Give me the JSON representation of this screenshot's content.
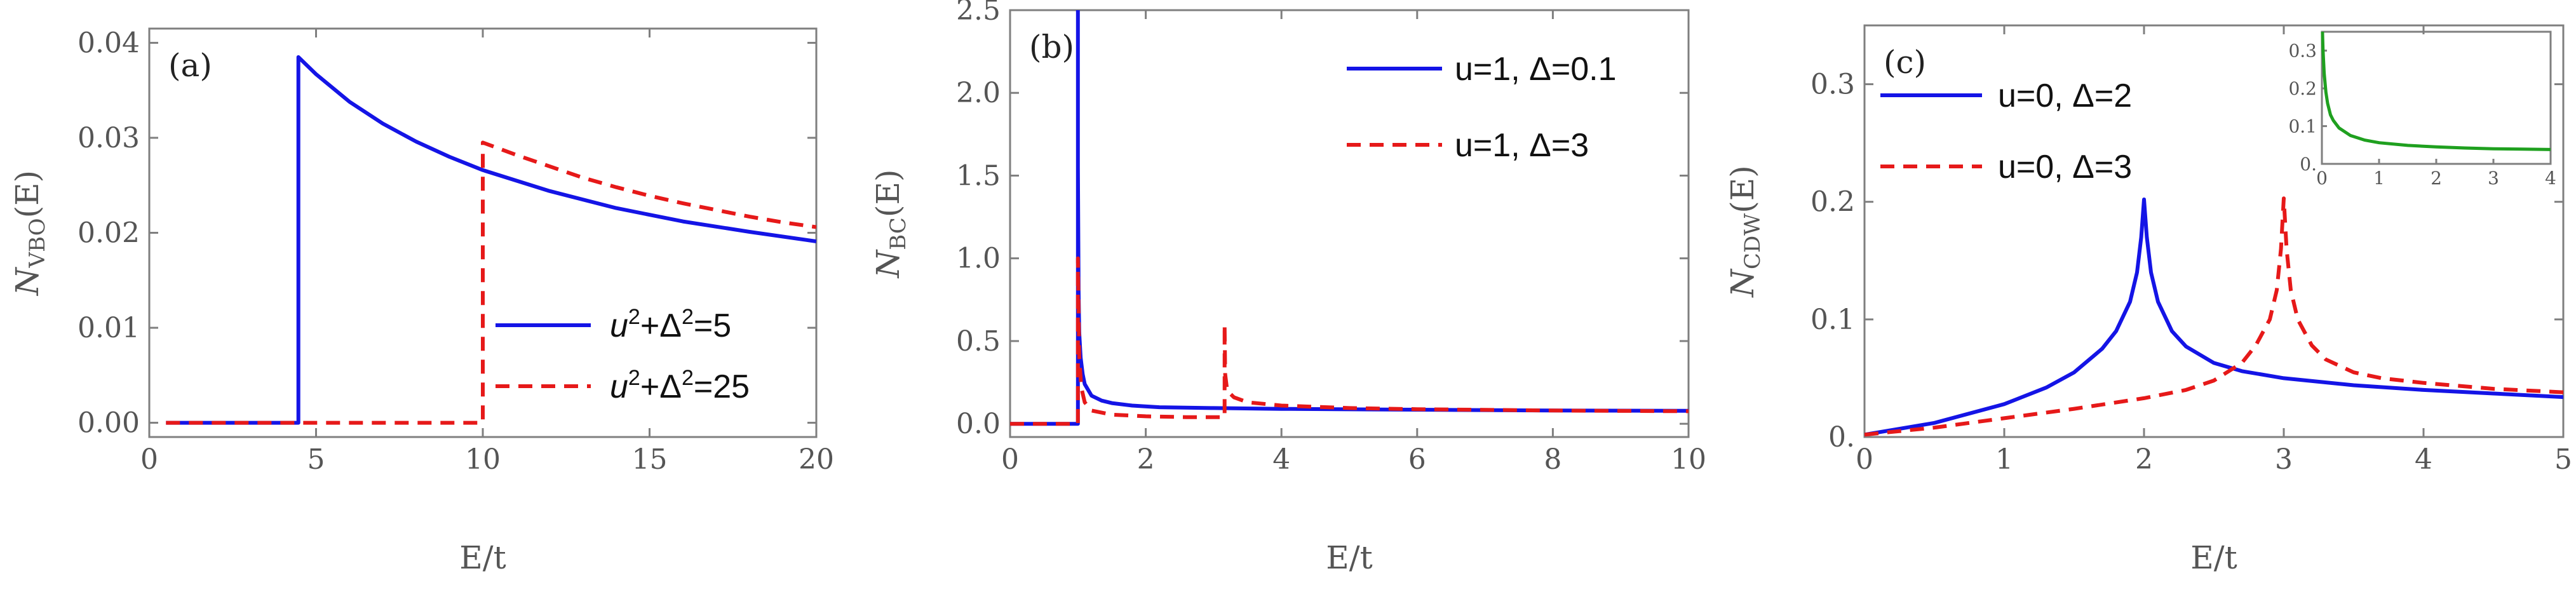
{
  "figure": {
    "colors": {
      "blue": "#1414e6",
      "red": "#e61919",
      "green": "#1fa01f",
      "axis": "#7f7f7f"
    }
  },
  "chart_data": [
    {
      "panel_tag": "(a)",
      "type": "line",
      "xlabel": "E/t",
      "ylabel_main": "N",
      "ylabel_sub": "VBO",
      "ylabel_tail": "(E)",
      "xlim": [
        0,
        20
      ],
      "ylim": [
        -0.0015,
        0.0415
      ],
      "xticks": [
        0,
        5,
        10,
        15,
        20
      ],
      "xtick_labels": [
        "0",
        "5",
        "10",
        "15",
        "20"
      ],
      "yticks": [
        0,
        0.01,
        0.02,
        0.03,
        0.04
      ],
      "ytick_labels": [
        "0.00",
        "0.01",
        "0.02",
        "0.03",
        "0.04"
      ],
      "legend_position": "lower-right",
      "series": [
        {
          "name": "u²+Δ²=5",
          "legend_base1": "u",
          "legend_sup1": "2",
          "legend_mid": "+Δ",
          "legend_sup2": "2",
          "legend_tail": "=5",
          "style": "solid",
          "color": "blue",
          "x": [
            0.5,
            4.47,
            4.47,
            5,
            6,
            7,
            8,
            9,
            10,
            12,
            14,
            16,
            18,
            20
          ],
          "y": [
            0,
            0,
            0.0385,
            0.0367,
            0.0338,
            0.0315,
            0.0296,
            0.028,
            0.0266,
            0.0244,
            0.0226,
            0.0212,
            0.0201,
            0.0191
          ]
        },
        {
          "name": "u²+Δ²=25",
          "legend_base1": "u",
          "legend_sup1": "2",
          "legend_mid": "+Δ",
          "legend_sup2": "2",
          "legend_tail": "=25",
          "style": "dashed",
          "color": "red",
          "x": [
            0.5,
            10,
            10,
            11,
            12,
            13,
            14,
            15,
            16,
            17,
            18,
            19,
            20
          ],
          "y": [
            0,
            0,
            0.0295,
            0.0282,
            0.027,
            0.0258,
            0.0248,
            0.0239,
            0.0231,
            0.0224,
            0.0217,
            0.0211,
            0.0206
          ]
        }
      ]
    },
    {
      "panel_tag": "(b)",
      "type": "line",
      "xlabel": "E/t",
      "ylabel_main": "N",
      "ylabel_sub": "BC",
      "ylabel_tail": "(E)",
      "xlim": [
        0,
        10
      ],
      "ylim": [
        -0.08,
        2.5
      ],
      "xticks": [
        0,
        2,
        4,
        6,
        8,
        10
      ],
      "xtick_labels": [
        "0",
        "2",
        "4",
        "6",
        "8",
        "10"
      ],
      "yticks": [
        0,
        0.5,
        1.0,
        1.5,
        2.0,
        2.5
      ],
      "ytick_labels": [
        "0.0",
        "0.5",
        "1.0",
        "1.5",
        "2.0",
        "2.5"
      ],
      "legend_position": "top-right",
      "series": [
        {
          "name": "u=1, Δ=0.1",
          "style": "solid",
          "color": "blue",
          "x": [
            0,
            1.0,
            1.0,
            1.0,
            1.01,
            1.02,
            1.04,
            1.07,
            1.1,
            1.2,
            1.35,
            1.5,
            1.8,
            2.2,
            3,
            4,
            6,
            8,
            10
          ],
          "y": [
            0,
            0,
            2.5,
            1.55,
            0.8,
            0.55,
            0.4,
            0.3,
            0.24,
            0.17,
            0.14,
            0.125,
            0.11,
            0.1,
            0.095,
            0.09,
            0.085,
            0.08,
            0.078
          ]
        },
        {
          "name": "u=1, Δ=3",
          "style": "dashed",
          "color": "red",
          "x": [
            0,
            0.98,
            1.0,
            1.0,
            1.02,
            1.05,
            1.1,
            1.2,
            1.5,
            2.0,
            2.6,
            3.1,
            3.162,
            3.162,
            3.17,
            3.2,
            3.3,
            3.5,
            4,
            5,
            6,
            8,
            10
          ],
          "y": [
            0,
            0,
            0,
            1.0,
            0.4,
            0.22,
            0.13,
            0.08,
            0.055,
            0.045,
            0.04,
            0.04,
            0.04,
            0.6,
            0.3,
            0.2,
            0.16,
            0.13,
            0.11,
            0.095,
            0.088,
            0.08,
            0.076
          ]
        }
      ]
    },
    {
      "panel_tag": "(c)",
      "type": "line",
      "xlabel": "E/t",
      "ylabel_main": "N",
      "ylabel_sub": "CDW",
      "ylabel_tail": "(E)",
      "xlim": [
        0,
        5
      ],
      "ylim": [
        0,
        0.35
      ],
      "xticks": [
        0,
        1,
        2,
        3,
        4,
        5
      ],
      "xtick_labels": [
        "0",
        "1",
        "2",
        "3",
        "4",
        "5"
      ],
      "yticks": [
        0,
        0.1,
        0.2,
        0.3
      ],
      "ytick_labels": [
        "0.",
        "0.1",
        "0.2",
        "0.3"
      ],
      "legend_position": "top-left",
      "series": [
        {
          "name": "u=0, Δ=2",
          "style": "solid",
          "color": "blue",
          "x": [
            0,
            0.5,
            1.0,
            1.3,
            1.5,
            1.7,
            1.8,
            1.9,
            1.95,
            1.98,
            2.0,
            2.02,
            2.05,
            2.1,
            2.2,
            2.3,
            2.5,
            2.7,
            3.0,
            3.5,
            4.0,
            4.5,
            5.0
          ],
          "y": [
            0.002,
            0.012,
            0.028,
            0.042,
            0.055,
            0.075,
            0.09,
            0.115,
            0.14,
            0.17,
            0.202,
            0.17,
            0.14,
            0.115,
            0.09,
            0.077,
            0.063,
            0.056,
            0.05,
            0.044,
            0.04,
            0.037,
            0.034
          ]
        },
        {
          "name": "u=0, Δ=3",
          "style": "dashed",
          "color": "red",
          "x": [
            0,
            0.5,
            1.0,
            1.5,
            2.0,
            2.3,
            2.5,
            2.7,
            2.8,
            2.9,
            2.95,
            2.98,
            3.0,
            3.02,
            3.05,
            3.1,
            3.2,
            3.3,
            3.5,
            3.7,
            4.0,
            4.5,
            5.0
          ],
          "y": [
            0.002,
            0.008,
            0.016,
            0.024,
            0.033,
            0.04,
            0.048,
            0.063,
            0.078,
            0.1,
            0.125,
            0.16,
            0.203,
            0.16,
            0.125,
            0.1,
            0.078,
            0.066,
            0.055,
            0.05,
            0.046,
            0.041,
            0.038
          ]
        }
      ],
      "inset": {
        "type": "line",
        "xlim": [
          0,
          4
        ],
        "ylim": [
          0,
          0.35
        ],
        "xticks": [
          0,
          1,
          2,
          3,
          4
        ],
        "xtick_labels": [
          "0",
          "1",
          "2",
          "3",
          "4"
        ],
        "yticks": [
          0,
          0.1,
          0.2,
          0.3
        ],
        "ytick_labels": [
          "0.",
          "0.1",
          "0.2",
          "0.3"
        ],
        "series": [
          {
            "name": "inset",
            "style": "solid",
            "color": "green",
            "x": [
              0.01,
              0.02,
              0.04,
              0.07,
              0.1,
              0.15,
              0.2,
              0.3,
              0.5,
              0.75,
              1.0,
              1.5,
              2.0,
              2.5,
              3.0,
              3.5,
              4.0
            ],
            "y": [
              0.35,
              0.3,
              0.24,
              0.19,
              0.16,
              0.13,
              0.115,
              0.095,
              0.075,
              0.063,
              0.056,
              0.049,
              0.045,
              0.042,
              0.04,
              0.039,
              0.038
            ]
          }
        ]
      }
    }
  ]
}
